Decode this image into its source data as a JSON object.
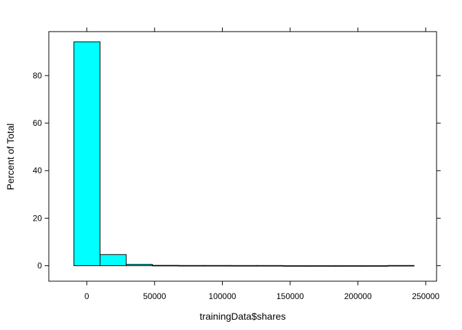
{
  "chart_data": {
    "type": "bar",
    "subtype": "histogram",
    "xlabel": "trainingData$shares",
    "ylabel": "Percent of Total",
    "xlim": [
      -28000,
      258000
    ],
    "ylim": [
      -6.5,
      98.5
    ],
    "x_ticks": [
      0,
      50000,
      100000,
      150000,
      200000,
      250000
    ],
    "x_tick_labels": [
      "0",
      "50000",
      "100000",
      "150000",
      "200000",
      "250000"
    ],
    "y_ticks": [
      0,
      20,
      40,
      60,
      80
    ],
    "y_tick_labels": [
      "0",
      "20",
      "40",
      "60",
      "80"
    ],
    "grid": false,
    "legend": "none",
    "bar_fill": "#00ffff",
    "bar_stroke": "#000000",
    "bins": [
      {
        "x0": -9500,
        "x1": 9800,
        "value": 94.2
      },
      {
        "x0": 9800,
        "x1": 29100,
        "value": 4.7
      },
      {
        "x0": 29100,
        "x1": 48400,
        "value": 0.6
      },
      {
        "x0": 48400,
        "x1": 67700,
        "value": 0.15
      },
      {
        "x0": 67700,
        "x1": 87000,
        "value": 0.1
      },
      {
        "x0": 87000,
        "x1": 106300,
        "value": 0.1
      },
      {
        "x0": 106300,
        "x1": 125600,
        "value": 0.08
      },
      {
        "x0": 125600,
        "x1": 144900,
        "value": 0.08
      },
      {
        "x0": 144900,
        "x1": 164200,
        "value": 0.02
      },
      {
        "x0": 164200,
        "x1": 183500,
        "value": 0.02
      },
      {
        "x0": 183500,
        "x1": 202800,
        "value": 0.02
      },
      {
        "x0": 202800,
        "x1": 222100,
        "value": 0.02
      },
      {
        "x0": 222100,
        "x1": 241400,
        "value": 0.1
      }
    ]
  }
}
